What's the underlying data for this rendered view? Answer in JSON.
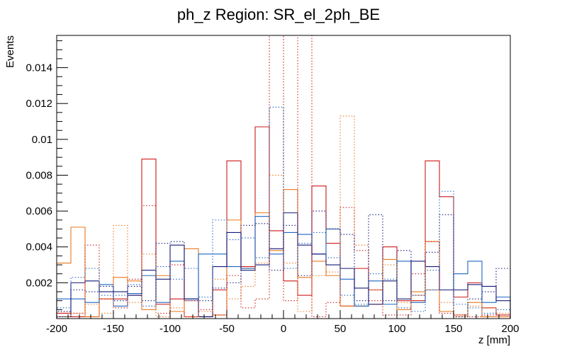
{
  "chart_data": {
    "type": "histogram",
    "title": "ph_z Region: SR_el_2ph_BE",
    "xlabel": "z [mm]",
    "ylabel": "Events",
    "xlim": [
      -200,
      200
    ],
    "ylim": [
      0,
      0.0158
    ],
    "bin_edges": [
      -200,
      -187.5,
      -175,
      -162.5,
      -150,
      -137.5,
      -125,
      -112.5,
      -100,
      -87.5,
      -75,
      -62.5,
      -50,
      -37.5,
      -25,
      -12.5,
      0,
      12.5,
      25,
      37.5,
      50,
      62.5,
      75,
      87.5,
      100,
      112.5,
      125,
      137.5,
      150,
      162.5,
      175,
      187.5,
      200
    ],
    "x_ticks": [
      "-200",
      "-150",
      "-100",
      "-50",
      "0",
      "50",
      "100",
      "150",
      "200"
    ],
    "x_tick_values": [
      -200,
      -150,
      -100,
      -50,
      0,
      50,
      100,
      150,
      200
    ],
    "y_ticks": [
      "0.002",
      "0.004",
      "0.006",
      "0.008",
      "0.01",
      "0.012",
      "0.014"
    ],
    "y_tick_values": [
      0.002,
      0.004,
      0.006,
      0.008,
      0.01,
      0.012,
      0.014
    ],
    "series": [
      {
        "name": "red_solid",
        "color": "#cc1a1a",
        "style": "solid",
        "values": [
          0.0003,
          0.0001,
          0.0001,
          0.0011,
          0.0011,
          0.0013,
          0.0089,
          0.0008,
          0.0011,
          0.0001,
          0.0001,
          0.0016,
          0.0088,
          0.0029,
          0.0107,
          0.0049,
          0.0021,
          0.0013,
          0.0074,
          0.0042,
          0.0007,
          0.0028,
          0.0016,
          0.004,
          0.001,
          0.001,
          0.0088,
          0.0068,
          0.0012,
          0.002,
          0.0006,
          0.0002
        ]
      },
      {
        "name": "orange_solid",
        "color": "#e8781e",
        "style": "solid",
        "values": [
          0.0031,
          0.0051,
          0.0001,
          0.0011,
          0.0023,
          0.0021,
          0.0005,
          0.0024,
          0.0004,
          0.0039,
          0.0001,
          0.0002,
          0.0055,
          0.0028,
          0.0059,
          0.0038,
          0.0072,
          0.0023,
          0.0032,
          0.0024,
          0.0007,
          0.0007,
          0.0008,
          0.0033,
          0.0005,
          0.0015,
          0.0043,
          0.0004,
          0.0002,
          0.0009,
          0.0001,
          0.0001
        ]
      },
      {
        "name": "blue_solid",
        "color": "#1f66c0",
        "style": "solid",
        "values": [
          0.0011,
          0.0011,
          0.0009,
          0.0019,
          0.0007,
          0.0014,
          0.0024,
          0.0009,
          0.0032,
          0.0011,
          0.0036,
          0.0036,
          0.0029,
          0.0028,
          0.0057,
          0.0036,
          0.0048,
          0.0047,
          0.0036,
          0.005,
          0.0022,
          0.0007,
          0.0021,
          0.0008,
          0.0032,
          0.0009,
          0.0016,
          0.0016,
          0.0025,
          0.0032,
          0.0009,
          0.0012
        ]
      },
      {
        "name": "navy_solid",
        "color": "#151b7a",
        "style": "solid",
        "values": [
          0.0001,
          0.002,
          0.0021,
          0.0015,
          0.0015,
          0.0013,
          0.0027,
          0.0022,
          0.0041,
          0.0011,
          0.0001,
          0.0029,
          0.0048,
          0.0027,
          0.003,
          0.0039,
          0.0059,
          0.0041,
          0.0036,
          0.003,
          0.0028,
          0.0017,
          0.0008,
          0.0021,
          0.0011,
          0.0032,
          0.0029,
          0.0016,
          0.0016,
          0.0019,
          0.0018,
          0.001
        ]
      },
      {
        "name": "red_dotted",
        "color": "#cc1a1a",
        "style": "dotted",
        "values": [
          0.0004,
          0.0003,
          0.0041,
          0.0011,
          0.0006,
          0.0022,
          0.0063,
          0.0003,
          0.003,
          0.001,
          0.0005,
          0.0002,
          0.0024,
          0.0006,
          0.0011,
          0.0158,
          0.001,
          0.0158,
          0.0001,
          0.0009,
          0.0062,
          0.0038,
          0.001,
          0.0002,
          0.0002,
          0.0025,
          0.0043,
          0.0003,
          0.0002,
          0.0001,
          0.0002,
          0.0002
        ]
      },
      {
        "name": "orange_dotted",
        "color": "#e8781e",
        "style": "dotted",
        "values": [
          0.0001,
          0.0003,
          0.0008,
          0.0003,
          0.0052,
          0.0009,
          0.0036,
          0.0001,
          0.0006,
          0.0001,
          0.0004,
          0.0022,
          0.0011,
          0.0018,
          0.0031,
          0.008,
          0.0031,
          0.0004,
          0.0024,
          0.0026,
          0.0113,
          0.0041,
          0.0016,
          0.003,
          0.0009,
          0.0013,
          0.0016,
          0.0009,
          0.0001,
          0.0007,
          0.0006,
          0.0003
        ]
      },
      {
        "name": "blue_dotted",
        "color": "#1f66c0",
        "style": "dotted",
        "values": [
          0.0006,
          0.0023,
          0.0028,
          0.0013,
          0.0013,
          0.0019,
          0.0007,
          0.0029,
          0.0022,
          0.0028,
          0.0012,
          0.0055,
          0.0044,
          0.0045,
          0.0034,
          0.0118,
          0.0028,
          0.0042,
          0.0048,
          0.0034,
          0.0013,
          0.0008,
          0.0025,
          0.0022,
          0.0006,
          0.0004,
          0.0027,
          0.0071,
          0.0008,
          0.0006,
          0.0003,
          0.0005
        ]
      },
      {
        "name": "navy_dotted",
        "color": "#151b7a",
        "style": "dotted",
        "values": [
          0.0004,
          0.0016,
          0.0015,
          0.0018,
          0.001,
          0.0018,
          0.001,
          0.0042,
          0.0043,
          0.001,
          0.001,
          0.0017,
          0.002,
          0.0052,
          0.0053,
          0.0027,
          0.0052,
          0.0024,
          0.006,
          0.005,
          0.0047,
          0.001,
          0.0058,
          0.001,
          0.0038,
          0.0013,
          0.0037,
          0.0058,
          0.0001,
          0.0011,
          0.0015,
          0.0028
        ]
      }
    ]
  }
}
